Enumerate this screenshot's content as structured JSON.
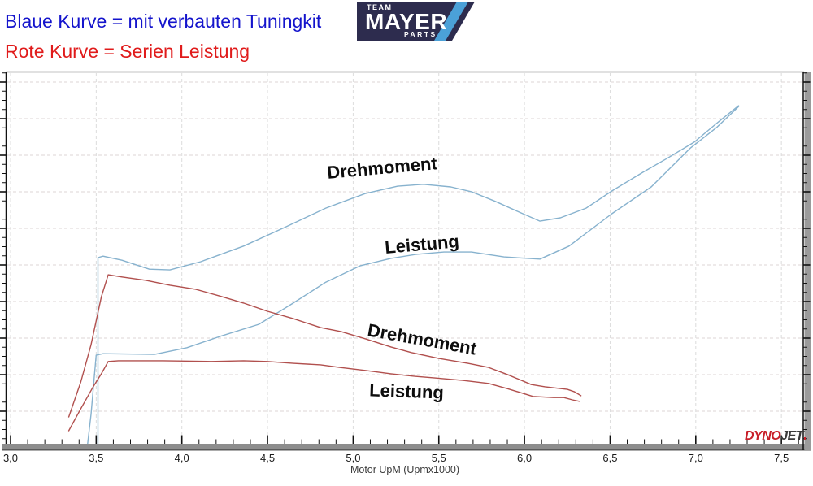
{
  "header": {
    "line1": "Blaue Kurve = mit verbauten Tuningkit",
    "line2": "Rote Kurve = Serien Leistung",
    "line1_color": "#1414cc",
    "line2_color": "#e01b1b",
    "logo": {
      "team": "TEAM",
      "mayer": "MAYER",
      "parts": "PARTS",
      "bg_color": "#2d2c4e",
      "slash_color": "#4ba1d8"
    }
  },
  "chart_data": {
    "type": "line",
    "title": "",
    "xlabel": "Motor UpM (Upmx1000)",
    "ylabel": "",
    "x_ticks": [
      "3,0",
      "3,5",
      "4,0",
      "4,5",
      "5,0",
      "5,5",
      "6,0",
      "6,5",
      "7,0",
      "7,5"
    ],
    "x_range": [
      3.0,
      7.6
    ],
    "x_minor_step": 0.1,
    "grid": "dashed major grid, both axes, y axis unlabeled",
    "y_axis_note": "no numeric labels visible; y values below are percent of plot height (0 = baseline, 100 = top)",
    "series": [
      {
        "name": "Drehmoment (mit Tuningkit)",
        "color": "#87b2ce",
        "points": [
          [
            3.51,
            0
          ],
          [
            3.51,
            50.0
          ],
          [
            3.54,
            50.4
          ],
          [
            3.65,
            49.3
          ],
          [
            3.81,
            46.9
          ],
          [
            3.93,
            46.7
          ],
          [
            4.11,
            48.9
          ],
          [
            4.36,
            53.1
          ],
          [
            4.6,
            58.1
          ],
          [
            4.84,
            63.3
          ],
          [
            5.07,
            67.2
          ],
          [
            5.26,
            69.2
          ],
          [
            5.41,
            69.7
          ],
          [
            5.57,
            69.0
          ],
          [
            5.69,
            67.7
          ],
          [
            5.83,
            65.1
          ],
          [
            5.98,
            62.0
          ],
          [
            6.09,
            59.8
          ],
          [
            6.21,
            60.7
          ],
          [
            6.36,
            63.3
          ],
          [
            6.51,
            67.9
          ],
          [
            6.69,
            72.9
          ],
          [
            6.83,
            76.6
          ],
          [
            6.99,
            81.0
          ],
          [
            7.12,
            86.0
          ],
          [
            7.25,
            90.8
          ]
        ]
      },
      {
        "name": "Leistung (mit Tuningkit)",
        "color": "#87b2ce",
        "points": [
          [
            3.45,
            0
          ],
          [
            3.47,
            7.9
          ],
          [
            3.5,
            23.8
          ],
          [
            3.54,
            24.2
          ],
          [
            3.84,
            24.0
          ],
          [
            4.03,
            25.8
          ],
          [
            4.22,
            28.8
          ],
          [
            4.45,
            32.1
          ],
          [
            4.65,
            37.8
          ],
          [
            4.84,
            43.4
          ],
          [
            5.04,
            47.8
          ],
          [
            5.22,
            49.8
          ],
          [
            5.37,
            50.9
          ],
          [
            5.53,
            51.5
          ],
          [
            5.69,
            51.5
          ],
          [
            5.88,
            50.2
          ],
          [
            6.09,
            49.6
          ],
          [
            6.26,
            53.1
          ],
          [
            6.51,
            61.8
          ],
          [
            6.74,
            69.0
          ],
          [
            6.97,
            79.5
          ],
          [
            7.12,
            84.9
          ],
          [
            7.25,
            90.6
          ]
        ]
      },
      {
        "name": "Drehmoment (Serie)",
        "color": "#b1504e",
        "points": [
          [
            3.34,
            7.2
          ],
          [
            3.41,
            16.6
          ],
          [
            3.47,
            26.6
          ],
          [
            3.53,
            39.5
          ],
          [
            3.57,
            45.4
          ],
          [
            3.65,
            44.8
          ],
          [
            3.79,
            43.9
          ],
          [
            3.93,
            42.6
          ],
          [
            4.08,
            41.5
          ],
          [
            4.22,
            39.7
          ],
          [
            4.36,
            37.8
          ],
          [
            4.5,
            35.6
          ],
          [
            4.65,
            33.6
          ],
          [
            4.81,
            31.2
          ],
          [
            4.93,
            30.1
          ],
          [
            5.07,
            28.2
          ],
          [
            5.22,
            26.0
          ],
          [
            5.34,
            24.5
          ],
          [
            5.5,
            22.9
          ],
          [
            5.67,
            21.6
          ],
          [
            5.79,
            20.5
          ],
          [
            5.9,
            18.6
          ],
          [
            6.04,
            15.9
          ],
          [
            6.12,
            15.3
          ],
          [
            6.25,
            14.6
          ],
          [
            6.29,
            14.0
          ],
          [
            6.33,
            12.9
          ]
        ]
      },
      {
        "name": "Leistung (Serie)",
        "color": "#b1504e",
        "points": [
          [
            3.34,
            3.5
          ],
          [
            3.41,
            9.4
          ],
          [
            3.48,
            15.1
          ],
          [
            3.53,
            18.8
          ],
          [
            3.57,
            22.1
          ],
          [
            3.63,
            22.3
          ],
          [
            3.89,
            22.3
          ],
          [
            4.17,
            22.1
          ],
          [
            4.36,
            22.3
          ],
          [
            4.5,
            22.1
          ],
          [
            4.65,
            21.6
          ],
          [
            4.81,
            21.2
          ],
          [
            4.92,
            20.5
          ],
          [
            5.07,
            19.7
          ],
          [
            5.22,
            18.8
          ],
          [
            5.36,
            18.1
          ],
          [
            5.47,
            17.7
          ],
          [
            5.64,
            17.0
          ],
          [
            5.79,
            16.2
          ],
          [
            5.9,
            14.8
          ],
          [
            6.05,
            12.7
          ],
          [
            6.17,
            12.4
          ],
          [
            6.23,
            12.4
          ],
          [
            6.28,
            11.8
          ],
          [
            6.32,
            11.4
          ]
        ]
      }
    ],
    "annotations": [
      {
        "text": "Drehmoment",
        "x": 5.17,
        "y": 74.0,
        "rotation": -5
      },
      {
        "text": "Leistung",
        "x": 5.4,
        "y": 53.5,
        "rotation": -5
      },
      {
        "text": "Drehmoment",
        "x": 5.4,
        "y": 28.0,
        "rotation": 10
      },
      {
        "text": "Leistung",
        "x": 5.31,
        "y": 14.0,
        "rotation": 2
      }
    ],
    "branding": {
      "dyno": "DYNO",
      "jet": "JET",
      "dyno_color": "#c8202a",
      "jet_color": "#3a3a3a"
    }
  }
}
